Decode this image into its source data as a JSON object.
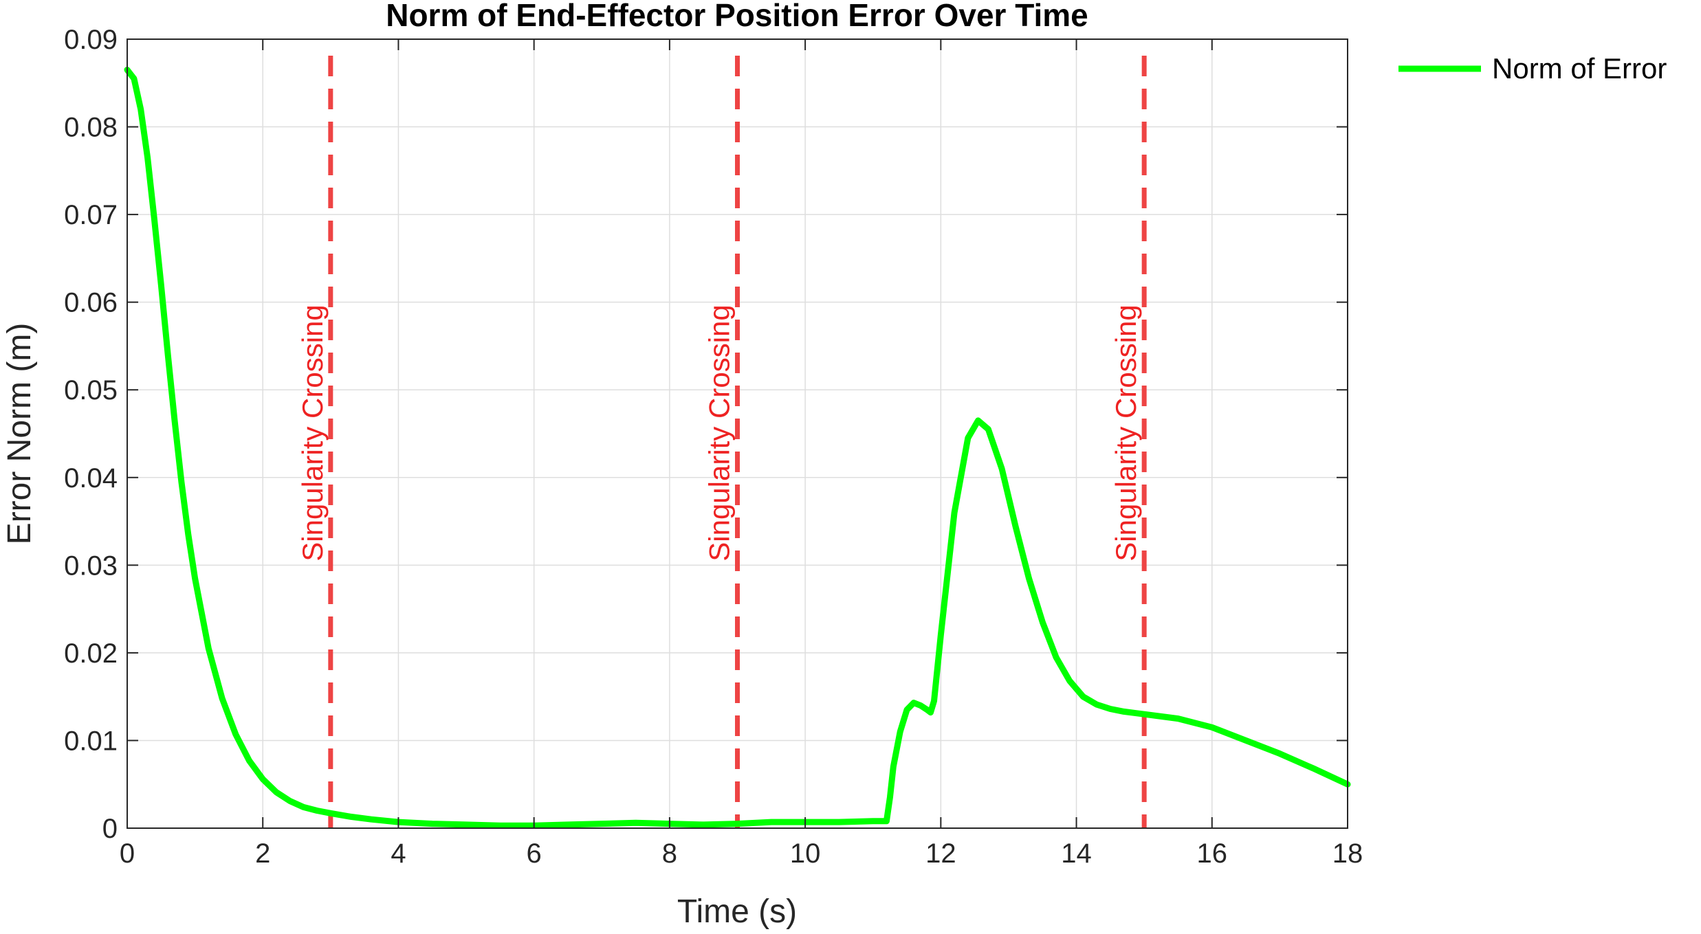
{
  "chart_data": {
    "type": "line",
    "title": "Norm of End-Effector Position Error Over Time",
    "xlabel": "Time (s)",
    "ylabel": "Error Norm (m)",
    "xlim": [
      0,
      18
    ],
    "ylim": [
      0,
      0.09
    ],
    "grid": true,
    "legend_position": "outside-top-right",
    "x_ticks": [
      0,
      2,
      4,
      6,
      8,
      10,
      12,
      14,
      16,
      18
    ],
    "x_tick_labels": [
      "0",
      "2",
      "4",
      "6",
      "8",
      "10",
      "12",
      "14",
      "16",
      "18"
    ],
    "y_ticks": [
      0,
      0.01,
      0.02,
      0.03,
      0.04,
      0.05,
      0.06,
      0.07,
      0.08,
      0.09
    ],
    "y_tick_labels": [
      "0",
      "0.01",
      "0.02",
      "0.03",
      "0.04",
      "0.05",
      "0.06",
      "0.07",
      "0.08",
      "0.09"
    ],
    "series": [
      {
        "name": "Norm of Error",
        "color": "#00ff00",
        "x": [
          0,
          0.1,
          0.2,
          0.3,
          0.4,
          0.5,
          0.6,
          0.7,
          0.8,
          0.9,
          1.0,
          1.2,
          1.4,
          1.6,
          1.8,
          2.0,
          2.2,
          2.4,
          2.6,
          2.8,
          3.0,
          3.3,
          3.6,
          4.0,
          4.5,
          5.0,
          5.5,
          6.0,
          6.5,
          7.0,
          7.5,
          8.0,
          8.5,
          9.0,
          9.5,
          10.0,
          10.5,
          11.0,
          11.2,
          11.25,
          11.3,
          11.4,
          11.5,
          11.6,
          11.7,
          11.8,
          11.85,
          11.9,
          12.0,
          12.2,
          12.4,
          12.55,
          12.7,
          12.9,
          13.1,
          13.3,
          13.5,
          13.7,
          13.9,
          14.1,
          14.3,
          14.5,
          14.7,
          15.0,
          15.5,
          16.0,
          16.5,
          17.0,
          17.5,
          18.0
        ],
        "y": [
          0.0865,
          0.0855,
          0.082,
          0.0765,
          0.0695,
          0.062,
          0.054,
          0.0465,
          0.0395,
          0.0335,
          0.0285,
          0.0205,
          0.0148,
          0.0107,
          0.0077,
          0.0056,
          0.0041,
          0.0031,
          0.0024,
          0.002,
          0.0017,
          0.0013,
          0.001,
          0.0007,
          0.0005,
          0.0004,
          0.0003,
          0.0003,
          0.0004,
          0.0005,
          0.0006,
          0.0005,
          0.0004,
          0.0005,
          0.0007,
          0.0007,
          0.0007,
          0.0008,
          0.0008,
          0.0035,
          0.007,
          0.011,
          0.0135,
          0.0143,
          0.014,
          0.0135,
          0.0132,
          0.0145,
          0.022,
          0.036,
          0.0445,
          0.0465,
          0.0455,
          0.041,
          0.0345,
          0.0285,
          0.0235,
          0.0195,
          0.0168,
          0.015,
          0.0141,
          0.0136,
          0.0133,
          0.013,
          0.0125,
          0.0115,
          0.01,
          0.0085,
          0.0068,
          0.005
        ]
      }
    ],
    "vertical_lines": [
      {
        "x": 3,
        "label": "Singularity Crossing",
        "color": "#ee4444"
      },
      {
        "x": 9,
        "label": "Singularity Crossing",
        "color": "#ee4444"
      },
      {
        "x": 15,
        "label": "Singularity Crossing",
        "color": "#ee4444"
      }
    ]
  }
}
